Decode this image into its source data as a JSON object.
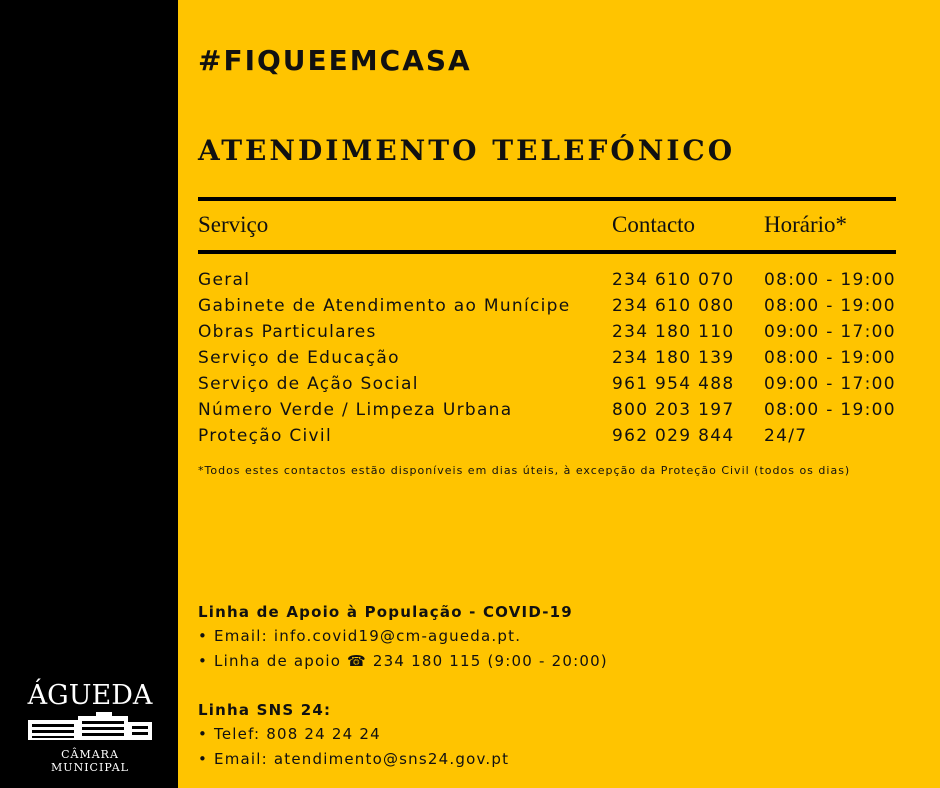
{
  "hashtag": "#FIQUEEMCASA",
  "title": "ATENDIMENTO TELEFÓNICO",
  "table": {
    "headers": [
      "Serviço",
      "Contacto",
      "Horário*"
    ],
    "rows": [
      [
        "Geral",
        "234 610 070",
        "08:00 - 19:00"
      ],
      [
        "Gabinete de Atendimento ao Munícipe",
        "234 610 080",
        "08:00 - 19:00"
      ],
      [
        "Obras Particulares",
        "234 180 110",
        "09:00 - 17:00"
      ],
      [
        "Serviço de Educação",
        "234 180 139",
        "08:00 - 19:00"
      ],
      [
        "Serviço de Ação Social",
        "961 954 488",
        "09:00 - 17:00"
      ],
      [
        "Número Verde / Limpeza Urbana",
        "800 203 197",
        "08:00 - 19:00"
      ],
      [
        "Proteção Civil",
        "962 029 844",
        "24/7"
      ]
    ]
  },
  "footnote": "*Todos estes contactos estão disponíveis em dias úteis, à excepção da Proteção Civil (todos os dias)",
  "covid": {
    "heading": "Linha de Apoio à População -  COVID-19",
    "items": [
      "Email: info.covid19@cm-agueda.pt.",
      "Linha de apoio ☎ 234 180 115 (9:00 - 20:00)"
    ]
  },
  "sns": {
    "heading": "Linha SNS 24:",
    "items": [
      "Telef: 808 24 24 24",
      "Email: atendimento@sns24.gov.pt"
    ]
  },
  "logo": {
    "name": "ÁGUEDA",
    "subtitle": "CÂMARA MUNICIPAL"
  },
  "colors": {
    "background": "#FFC400",
    "sidebar": "#000000"
  }
}
